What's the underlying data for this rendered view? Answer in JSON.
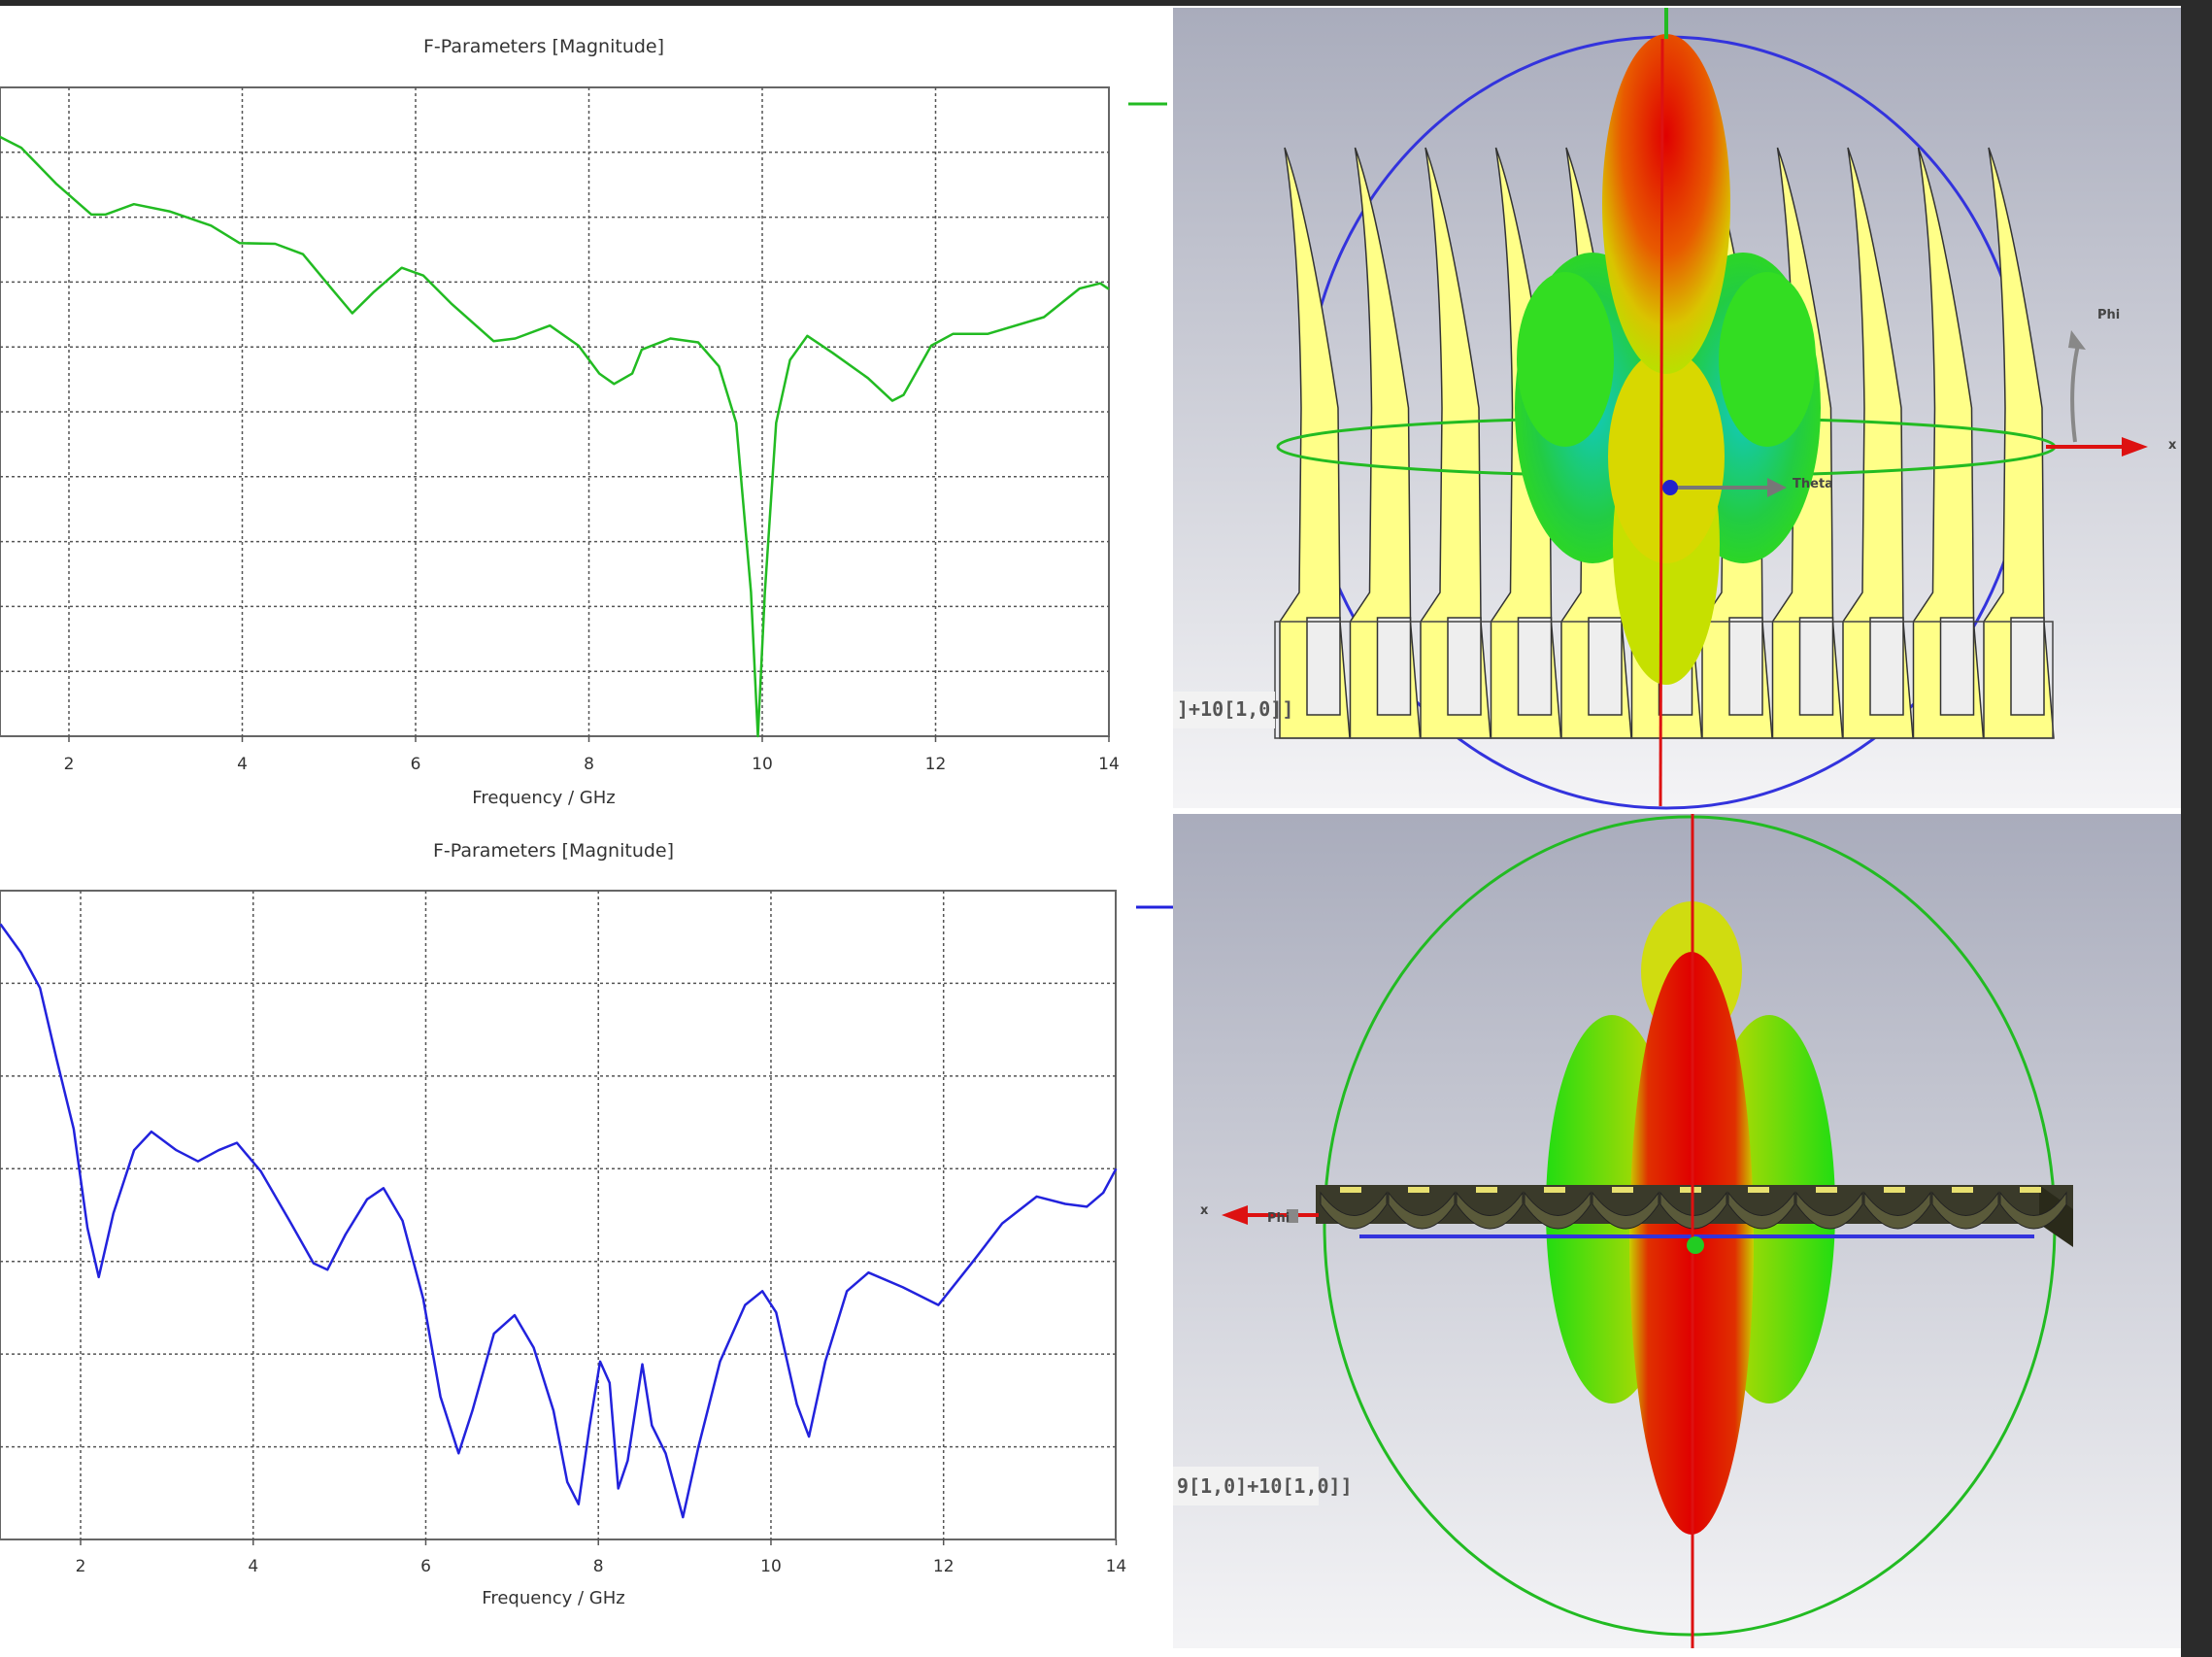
{
  "chart_data": [
    {
      "type": "line",
      "title": "F-Parameters [Magnitude]",
      "xlabel": "Frequency / GHz",
      "ylabel": "",
      "y_units_note": "grid divisions (y tick labels not visible)",
      "xlim": [
        1.2,
        14
      ],
      "ylim": [
        0,
        10
      ],
      "xticks": [
        "2",
        "4",
        "6",
        "8",
        "10",
        "12",
        "14"
      ],
      "grid": true,
      "legend": "top-right",
      "series": [
        {
          "name": "",
          "color": "#22bb22",
          "x": [
            1.2,
            1.45,
            1.85,
            2.26,
            2.42,
            2.75,
            3.16,
            3.64,
            3.97,
            4.38,
            4.7,
            5.03,
            5.27,
            5.52,
            5.84,
            6.09,
            6.41,
            6.9,
            7.15,
            7.55,
            7.88,
            8.12,
            8.29,
            8.5,
            8.61,
            8.94,
            9.26,
            9.5,
            9.7,
            9.87,
            9.95,
            10.03,
            10.16,
            10.32,
            10.52,
            10.81,
            11.22,
            11.5,
            11.63,
            11.95,
            12.2,
            12.6,
            13.25,
            13.66,
            13.9,
            14
          ],
          "y": [
            9.24,
            9.07,
            8.52,
            8.04,
            8.04,
            8.2,
            8.09,
            7.87,
            7.6,
            7.59,
            7.43,
            6.9,
            6.52,
            6.85,
            7.22,
            7.1,
            6.67,
            6.09,
            6.13,
            6.33,
            6.02,
            5.59,
            5.43,
            5.59,
            5.96,
            6.13,
            6.07,
            5.7,
            4.83,
            2.22,
            0,
            2.22,
            4.83,
            5.8,
            6.17,
            5.91,
            5.52,
            5.17,
            5.26,
            6.02,
            6.2,
            6.2,
            6.46,
            6.9,
            6.98,
            6.89
          ]
        }
      ]
    },
    {
      "type": "line",
      "title": "F-Parameters [Magnitude]",
      "xlabel": "Frequency / GHz",
      "ylabel": "",
      "y_units_note": "grid divisions (y tick labels not visible)",
      "xlim": [
        1.07,
        14
      ],
      "ylim": [
        0,
        7
      ],
      "xticks": [
        "2",
        "4",
        "6",
        "8",
        "10",
        "12",
        "14"
      ],
      "grid": true,
      "legend": "top-right",
      "series": [
        {
          "name": "",
          "color": "#2222dd",
          "x": [
            1.07,
            1.31,
            1.53,
            1.72,
            1.92,
            2.08,
            2.21,
            2.38,
            2.62,
            2.82,
            3.11,
            3.36,
            3.6,
            3.81,
            4.09,
            4.42,
            4.7,
            4.86,
            5.07,
            5.32,
            5.51,
            5.73,
            5.97,
            6.17,
            6.38,
            6.54,
            6.79,
            7.03,
            7.25,
            7.48,
            7.64,
            7.77,
            7.9,
            8.02,
            8.13,
            8.23,
            8.34,
            8.51,
            8.62,
            8.78,
            8.98,
            9.16,
            9.41,
            9.7,
            9.9,
            10.06,
            10.3,
            10.44,
            10.63,
            10.88,
            11.13,
            11.53,
            11.94,
            12.35,
            12.68,
            13.08,
            13.41,
            13.66,
            13.85,
            14
          ],
          "y": [
            6.64,
            6.33,
            5.95,
            5.19,
            4.43,
            3.36,
            2.83,
            3.52,
            4.2,
            4.4,
            4.2,
            4.08,
            4.2,
            4.28,
            3.97,
            3.44,
            2.98,
            2.91,
            3.29,
            3.67,
            3.79,
            3.44,
            2.6,
            1.54,
            0.93,
            1.39,
            2.22,
            2.42,
            2.07,
            1.39,
            0.62,
            0.38,
            1.23,
            1.92,
            1.69,
            0.55,
            0.85,
            1.89,
            1.23,
            0.93,
            0.24,
            1.0,
            1.92,
            2.53,
            2.68,
            2.45,
            1.46,
            1.11,
            1.92,
            2.68,
            2.88,
            2.72,
            2.53,
            3.01,
            3.41,
            3.7,
            3.62,
            3.59,
            3.74,
            4.0
          ]
        }
      ]
    }
  ],
  "views3d": {
    "top": {
      "port_label": "]+10[1,0]]",
      "phi_label": "Phi",
      "theta_label": "Theta",
      "x_label": "x"
    },
    "bottom": {
      "port_label": "9[1,0]+10[1,0]]",
      "phi_label": "Phi",
      "x_label": "x"
    }
  },
  "colors": {
    "grid": "#555555",
    "frame": "#666666",
    "fin": "#ffff88",
    "lobe_red": "#e00000",
    "lobe_green": "#22dd22"
  }
}
